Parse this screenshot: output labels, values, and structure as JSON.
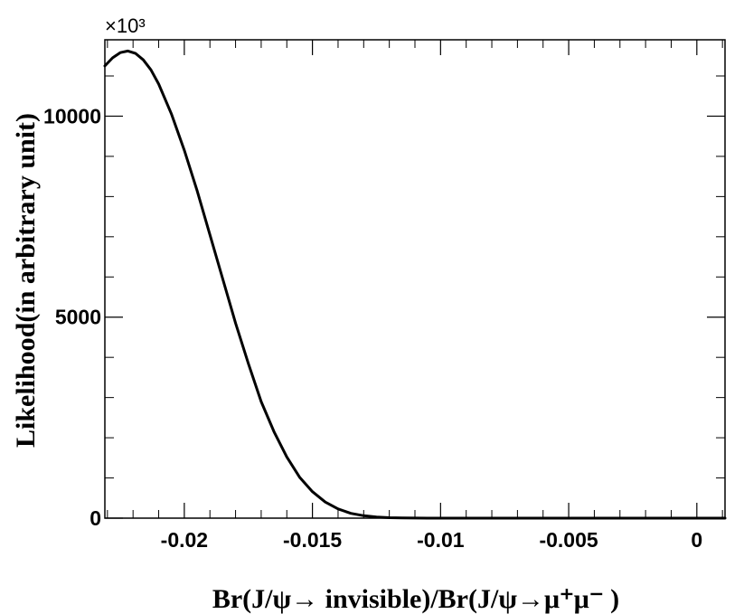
{
  "chart_data": {
    "type": "line",
    "xlabel": "Br(J/ψ→ invisible)/Br(J/ψ→μ⁺μ⁻ )",
    "ylabel": "Likelihood(in arbitrary unit)",
    "y_multiplier": "×10³",
    "xlim": [
      -0.0231,
      0.0011
    ],
    "ylim": [
      0,
      11900
    ],
    "x_ticks": [
      -0.02,
      -0.015,
      -0.01,
      -0.005,
      0
    ],
    "x_tick_labels": [
      "-0.02",
      "-0.015",
      "-0.01",
      "-0.005",
      "0"
    ],
    "y_ticks": [
      0,
      5000,
      10000
    ],
    "y_tick_labels": [
      "0",
      "5000",
      "10000"
    ],
    "grid": false,
    "series": [
      {
        "color": "#000000",
        "x": [
          -0.0231,
          -0.0228,
          -0.0225,
          -0.0222,
          -0.0219,
          -0.0216,
          -0.0213,
          -0.021,
          -0.0205,
          -0.02,
          -0.0195,
          -0.019,
          -0.0185,
          -0.018,
          -0.0175,
          -0.017,
          -0.0165,
          -0.016,
          -0.0155,
          -0.015,
          -0.0145,
          -0.014,
          -0.0135,
          -0.013,
          -0.0125,
          -0.012,
          -0.0115,
          -0.011,
          -0.0105,
          -0.01,
          -0.009,
          -0.008,
          -0.007,
          -0.006,
          -0.005,
          -0.004,
          -0.003,
          -0.002,
          -0.001,
          0,
          0.0011
        ],
        "y": [
          11250,
          11450,
          11580,
          11620,
          11560,
          11400,
          11150,
          10800,
          10050,
          9150,
          8150,
          7050,
          5950,
          4850,
          3850,
          2900,
          2150,
          1520,
          1020,
          660,
          400,
          230,
          120,
          60,
          28,
          12,
          5,
          2,
          1,
          0,
          0,
          0,
          0,
          0,
          0,
          0,
          0,
          0,
          0,
          0,
          0
        ]
      }
    ]
  }
}
